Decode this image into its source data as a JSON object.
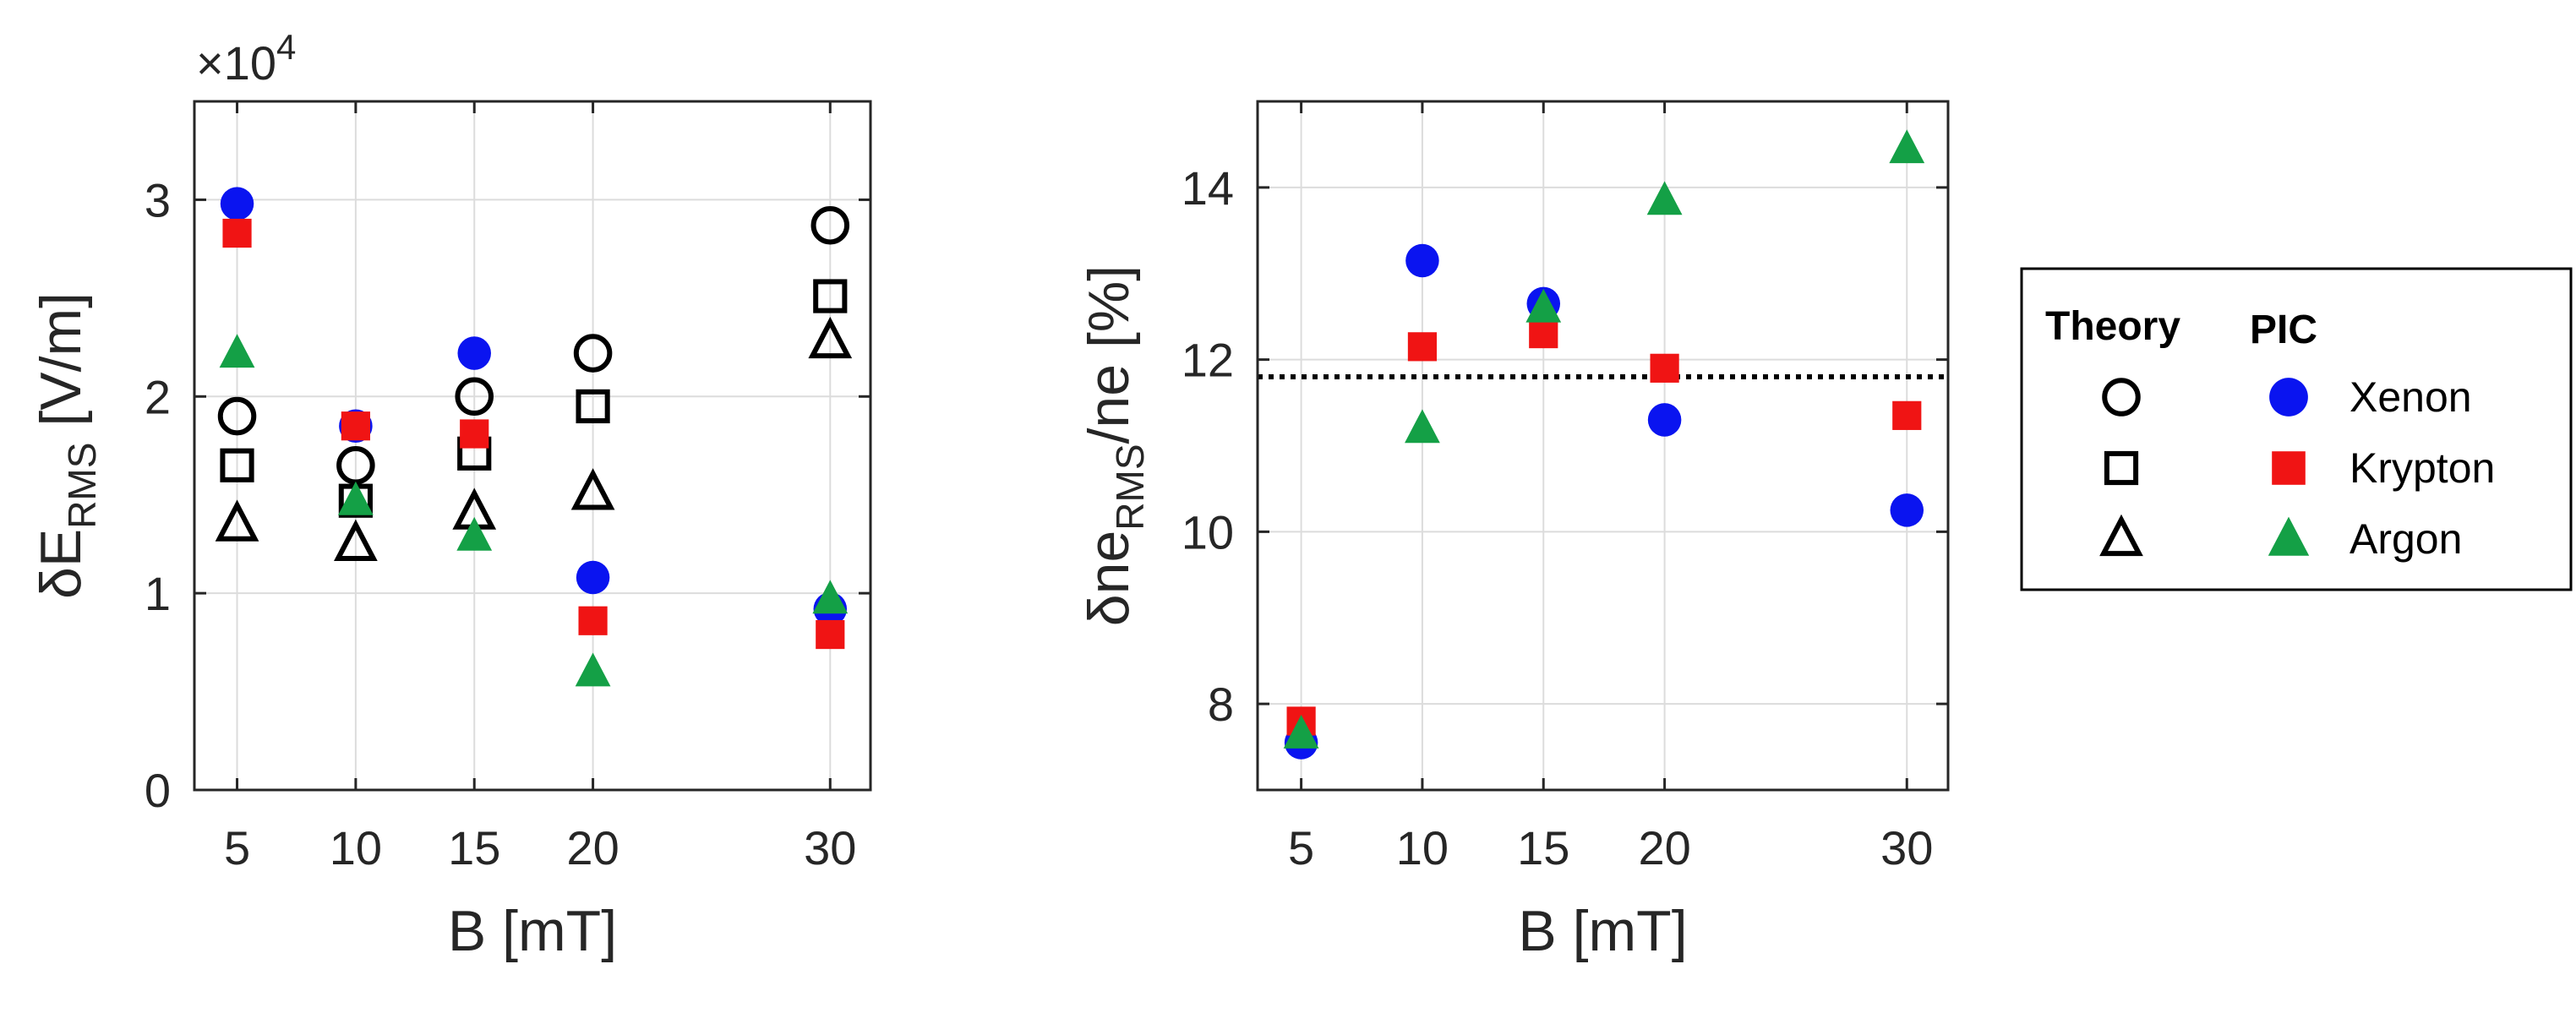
{
  "chart_data": [
    {
      "type": "scatter",
      "title": "",
      "xlabel": "B [mT]",
      "ylabel": "δE_RMS [V/m]",
      "y_exponent_label": "×10",
      "y_exponent": "4",
      "x_ticks": [
        5,
        10,
        15,
        20,
        30
      ],
      "y_ticks": [
        0,
        1,
        2,
        3
      ],
      "xlim": [
        3.2,
        31.7
      ],
      "ylim": [
        0,
        3.5
      ],
      "grid": true,
      "x": [
        5,
        10,
        15,
        20,
        30
      ],
      "series": [
        {
          "name": "Theory Xenon",
          "marker": "circle",
          "filled": false,
          "values": [
            1.9,
            1.65,
            2.0,
            2.22,
            2.87
          ]
        },
        {
          "name": "Theory Krypton",
          "marker": "square",
          "filled": false,
          "values": [
            1.65,
            1.47,
            1.71,
            1.95,
            2.51
          ]
        },
        {
          "name": "Theory Argon",
          "marker": "triangle",
          "filled": false,
          "values": [
            1.35,
            1.25,
            1.41,
            1.51,
            2.28
          ]
        },
        {
          "name": "PIC Xenon",
          "marker": "circle",
          "filled": true,
          "values": [
            2.98,
            1.85,
            2.22,
            1.08,
            0.92
          ]
        },
        {
          "name": "PIC Krypton",
          "marker": "square",
          "filled": true,
          "values": [
            2.83,
            1.85,
            1.81,
            0.86,
            0.79
          ]
        },
        {
          "name": "PIC Argon",
          "marker": "triangle",
          "filled": true,
          "values": [
            2.22,
            1.47,
            1.29,
            0.6,
            0.97
          ]
        }
      ]
    },
    {
      "type": "scatter",
      "title": "",
      "xlabel": "B [mT]",
      "ylabel": "δne_RMS/ne [%]",
      "x_ticks": [
        5,
        10,
        15,
        20,
        30
      ],
      "y_ticks": [
        8,
        10,
        12,
        14
      ],
      "xlim": [
        3.2,
        31.7
      ],
      "ylim": [
        7.0,
        15.0
      ],
      "grid": true,
      "reference_line": {
        "y": 11.8,
        "style": "dotted"
      },
      "x": [
        5,
        10,
        15,
        20,
        30
      ],
      "series": [
        {
          "name": "PIC Xenon",
          "marker": "circle",
          "filled": true,
          "values": [
            7.55,
            13.15,
            12.65,
            11.3,
            10.25
          ]
        },
        {
          "name": "PIC Krypton",
          "marker": "square",
          "filled": true,
          "values": [
            7.8,
            12.15,
            12.3,
            11.9,
            11.35
          ]
        },
        {
          "name": "PIC Argon",
          "marker": "triangle",
          "filled": true,
          "values": [
            7.65,
            11.2,
            12.6,
            13.85,
            14.45
          ]
        }
      ]
    }
  ],
  "legend": {
    "theory_header": "Theory",
    "pic_header": "PIC",
    "entries": [
      {
        "label": "Xenon",
        "marker": "circle",
        "color": "#0a14f0"
      },
      {
        "label": "Krypton",
        "marker": "square",
        "color": "#f01414"
      },
      {
        "label": "Argon",
        "marker": "triangle",
        "color": "#14a046"
      }
    ]
  },
  "colors": {
    "xenon": "#0a14f0",
    "krypton": "#f01414",
    "argon": "#14a046",
    "theory": "#000000"
  }
}
